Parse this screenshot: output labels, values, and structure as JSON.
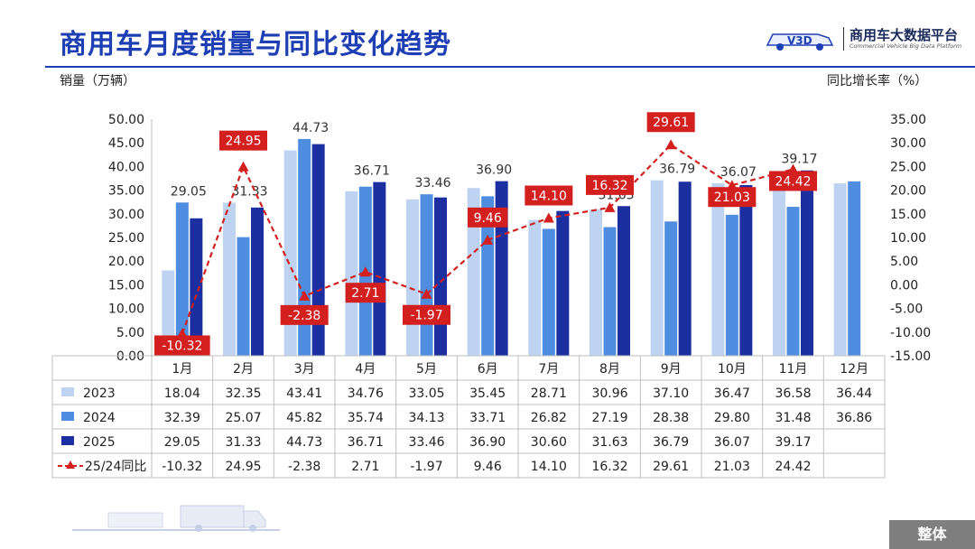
{
  "header": {
    "title": "商用车月度销量与同比变化趋势",
    "logo_name": "商用车大数据平台",
    "logo_sub": "Commercial Vehicle Big Data Platform",
    "logo_mark": "V3D"
  },
  "footer": {
    "tag": "整体"
  },
  "colors": {
    "c2023": "#bdd3f1",
    "c2024": "#4f8de0",
    "c2025": "#1b2fa0",
    "yoy": "#d41f1f",
    "title": "#1e3fb4"
  },
  "chart_data": {
    "type": "bar",
    "ylabel": "销量（万辆）",
    "y2label": "同比增长率（%）",
    "ylim": [
      0,
      50
    ],
    "y2lim": [
      -15,
      35
    ],
    "y_ticks": [
      "0.00",
      "5.00",
      "10.00",
      "15.00",
      "20.00",
      "25.00",
      "30.00",
      "35.00",
      "40.00",
      "45.00",
      "50.00"
    ],
    "y2_ticks": [
      "-15.00",
      "-10.00",
      "-5.00",
      "0.00",
      "5.00",
      "10.00",
      "15.00",
      "20.00",
      "25.00",
      "30.00",
      "35.00"
    ],
    "categories": [
      "1月",
      "2月",
      "3月",
      "4月",
      "5月",
      "6月",
      "7月",
      "8月",
      "9月",
      "10月",
      "11月",
      "12月"
    ],
    "series": [
      {
        "name": "2023",
        "type": "bar",
        "values": [
          18.04,
          32.35,
          43.41,
          34.76,
          33.05,
          35.45,
          28.71,
          30.96,
          37.1,
          36.47,
          36.58,
          36.44
        ],
        "labels": [
          "18.04",
          "32.35",
          "43.41",
          "34.76",
          "33.05",
          "35.45",
          "28.71",
          "30.96",
          "37.10",
          "36.47",
          "36.58",
          "36.44"
        ]
      },
      {
        "name": "2024",
        "type": "bar",
        "values": [
          32.39,
          25.07,
          45.82,
          35.74,
          34.13,
          33.71,
          26.82,
          27.19,
          28.38,
          29.8,
          31.48,
          36.86
        ],
        "labels": [
          "32.39",
          "25.07",
          "45.82",
          "35.74",
          "34.13",
          "33.71",
          "26.82",
          "27.19",
          "28.38",
          "29.80",
          "31.48",
          "36.86"
        ]
      },
      {
        "name": "2025",
        "type": "bar",
        "values": [
          29.05,
          31.33,
          44.73,
          36.71,
          33.46,
          36.9,
          30.6,
          31.63,
          36.79,
          36.07,
          39.17,
          null
        ],
        "labels": [
          "29.05",
          "31.33",
          "44.73",
          "36.71",
          "33.46",
          "36.90",
          "30.60",
          "31.63",
          "36.79",
          "36.07",
          "39.17",
          ""
        ]
      },
      {
        "name": "25/24同比",
        "type": "line",
        "axis": "right",
        "values": [
          -10.32,
          24.95,
          -2.38,
          2.71,
          -1.97,
          9.46,
          14.1,
          16.32,
          29.61,
          21.03,
          24.42,
          null
        ],
        "labels": [
          "-10.32",
          "24.95",
          "-2.38",
          "2.71",
          "-1.97",
          "9.46",
          "14.10",
          "16.32",
          "29.61",
          "21.03",
          "24.42",
          ""
        ]
      }
    ]
  }
}
